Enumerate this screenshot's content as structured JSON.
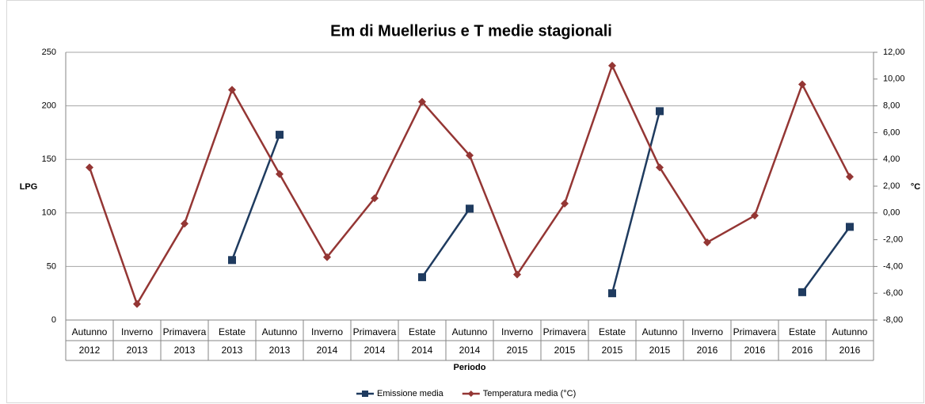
{
  "chart_data": {
    "type": "line",
    "title": "Em di Muellerius e T medie stagionali",
    "x_label": "Periodo",
    "y_label": "LPG",
    "y2_label": "°C",
    "categories": [
      [
        "Autunno",
        "2012"
      ],
      [
        "Inverno",
        "2013"
      ],
      [
        "Primavera",
        "2013"
      ],
      [
        "Estate",
        "2013"
      ],
      [
        "Autunno",
        "2013"
      ],
      [
        "Inverno",
        "2014"
      ],
      [
        "Primavera",
        "2014"
      ],
      [
        "Estate",
        "2014"
      ],
      [
        "Autunno",
        "2014"
      ],
      [
        "Inverno",
        "2015"
      ],
      [
        "Primavera",
        "2015"
      ],
      [
        "Estate",
        "2015"
      ],
      [
        "Autunno",
        "2015"
      ],
      [
        "Inverno",
        "2016"
      ],
      [
        "Primavera",
        "2016"
      ],
      [
        "Estate",
        "2016"
      ],
      [
        "Autunno",
        "2016"
      ]
    ],
    "series": [
      {
        "name": "Emissione media",
        "color": "#1f3b5f",
        "marker": "square",
        "axis": "y",
        "values": [
          null,
          null,
          null,
          56,
          173,
          null,
          null,
          40,
          104,
          null,
          null,
          25,
          195,
          null,
          null,
          26,
          87
        ]
      },
      {
        "name": "Temperatura media (°C)",
        "color": "#943634",
        "marker": "diamond",
        "axis": "y2",
        "values": [
          3.4,
          -6.8,
          -0.8,
          9.2,
          2.9,
          -3.3,
          1.1,
          8.3,
          4.3,
          -4.6,
          0.7,
          11.0,
          3.4,
          -2.2,
          -0.2,
          9.6,
          2.7
        ]
      }
    ],
    "ylim": [
      0,
      250
    ],
    "yticks": [
      0,
      50,
      100,
      150,
      200,
      250
    ],
    "y2lim": [
      -8,
      12
    ],
    "y2ticks": [
      {
        "value": -8,
        "label": "-8,00"
      },
      {
        "value": -6,
        "label": "-6,00"
      },
      {
        "value": -4,
        "label": "-4,00"
      },
      {
        "value": -2,
        "label": "-2,00"
      },
      {
        "value": 0,
        "label": "0,00"
      },
      {
        "value": 2,
        "label": "2,00"
      },
      {
        "value": 4,
        "label": "4,00"
      },
      {
        "value": 6,
        "label": "6,00"
      },
      {
        "value": 8,
        "label": "8,00"
      },
      {
        "value": 10,
        "label": "10,00"
      },
      {
        "value": 12,
        "label": "12,00"
      }
    ],
    "grid": true,
    "legend": "bottom"
  }
}
